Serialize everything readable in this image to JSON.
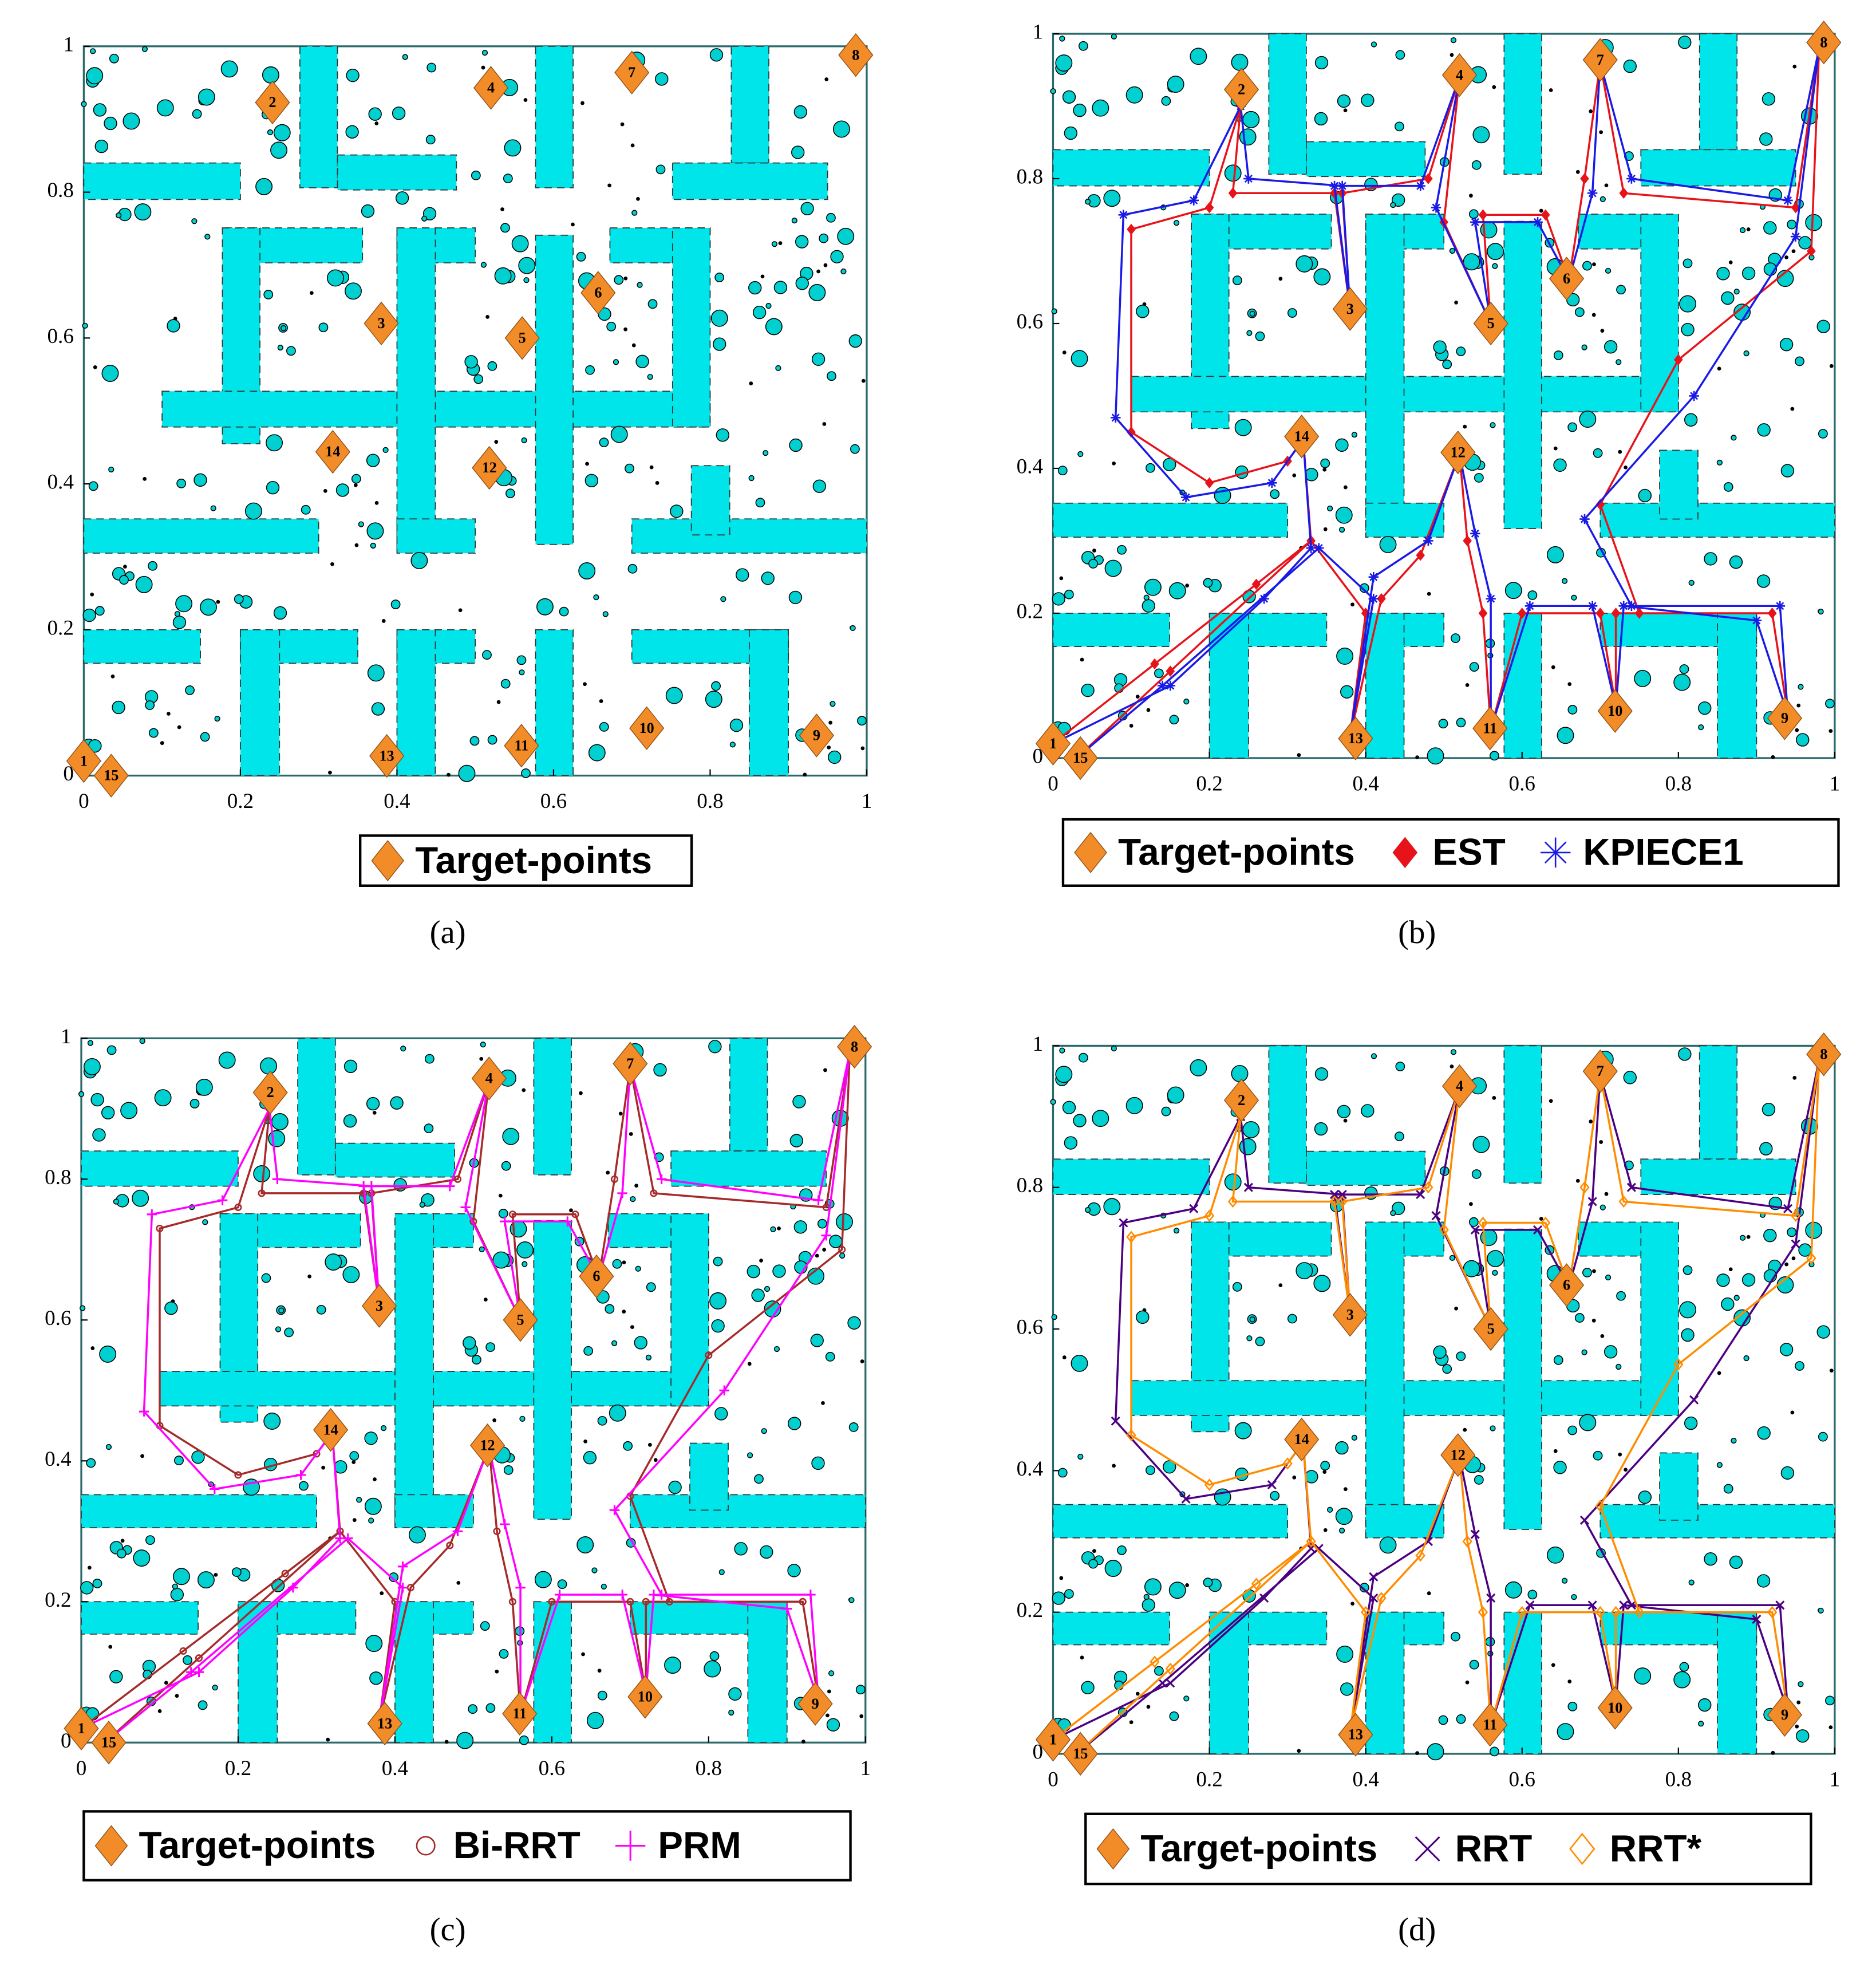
{
  "chart_data": [
    {
      "type": "scatter",
      "caption": "(a)",
      "xlim": [
        0,
        1
      ],
      "ylim": [
        0,
        1
      ],
      "xticks": [
        0,
        0.2,
        0.4,
        0.6,
        0.8,
        1
      ],
      "yticks": [
        0,
        0.2,
        0.4,
        0.6,
        0.8,
        1
      ],
      "series": [
        {
          "name": "Target-points",
          "color": "#f28c28",
          "marker": "diamond",
          "labels": [
            "1",
            "2",
            "3",
            "4",
            "5",
            "6",
            "7",
            "8",
            "9",
            "10",
            "11",
            "12",
            "13",
            "14",
            "15"
          ],
          "x": [
            0,
            0.241,
            0.38,
            0.52,
            0.56,
            0.657,
            0.7,
            0.986,
            0.936,
            0.719,
            0.559,
            0.518,
            0.387,
            0.318,
            0.035
          ],
          "y": [
            0.02,
            0.923,
            0.62,
            0.943,
            0.6,
            0.662,
            0.964,
            0.988,
            0.055,
            0.065,
            0.041,
            0.422,
            0.027,
            0.444,
            0
          ]
        }
      ]
    },
    {
      "type": "scatter",
      "caption": "(b)",
      "xlim": [
        0,
        1
      ],
      "ylim": [
        0,
        1
      ],
      "xticks": [
        0,
        0.2,
        0.4,
        0.6,
        0.8,
        1
      ],
      "yticks": [
        0,
        0.2,
        0.4,
        0.6,
        0.8,
        1
      ],
      "series": [
        {
          "name": "Target-points",
          "color": "#f28c28",
          "marker": "diamond",
          "labels": [
            "1",
            "2",
            "3",
            "4",
            "5",
            "6",
            "7",
            "8",
            "9",
            "10",
            "11",
            "12",
            "13",
            "14",
            "15"
          ],
          "x": [
            0,
            0.241,
            0.38,
            0.52,
            0.56,
            0.657,
            0.7,
            0.986,
            0.936,
            0.719,
            0.559,
            0.518,
            0.387,
            0.318,
            0.035
          ],
          "y": [
            0.02,
            0.923,
            0.62,
            0.943,
            0.6,
            0.662,
            0.964,
            0.988,
            0.055,
            0.065,
            0.041,
            0.422,
            0.027,
            0.444,
            0
          ]
        },
        {
          "name": "EST",
          "color": "#e8121a",
          "marker": "diamond",
          "x": [
            0,
            0.13,
            0.26,
            0.33,
            0.32,
            0.3,
            0.2,
            0.1,
            0.1,
            0.2,
            0.24,
            0.23,
            0.36,
            0.38,
            0.37,
            0.48,
            0.52,
            0.5,
            0.56,
            0.55,
            0.63,
            0.66,
            0.68,
            0.7,
            0.73,
            0.95,
            0.98,
            0.97,
            0.8,
            0.7,
            0.75,
            0.92,
            0.94,
            0.92,
            0.72,
            0.72,
            0.7,
            0.6,
            0.56,
            0.55,
            0.53,
            0.52,
            0.47,
            0.42,
            0.38,
            0.4,
            0.33,
            0.15,
            0.03
          ],
          "y": [
            0.02,
            0.13,
            0.24,
            0.3,
            0.44,
            0.41,
            0.38,
            0.45,
            0.73,
            0.76,
            0.9,
            0.78,
            0.78,
            0.62,
            0.78,
            0.8,
            0.94,
            0.74,
            0.6,
            0.75,
            0.75,
            0.66,
            0.8,
            0.96,
            0.78,
            0.76,
            0.98,
            0.7,
            0.55,
            0.35,
            0.2,
            0.2,
            0.06,
            0.2,
            0.2,
            0.07,
            0.2,
            0.2,
            0.04,
            0.2,
            0.3,
            0.42,
            0.28,
            0.22,
            0.03,
            0.2,
            0.3,
            0.12,
            0
          ]
        },
        {
          "name": "KPIECE1",
          "color": "#1a1ae6",
          "marker": "star",
          "x": [
            0,
            0.15,
            0.27,
            0.33,
            0.32,
            0.28,
            0.17,
            0.08,
            0.09,
            0.18,
            0.24,
            0.25,
            0.37,
            0.38,
            0.36,
            0.47,
            0.52,
            0.49,
            0.56,
            0.54,
            0.62,
            0.66,
            0.69,
            0.7,
            0.74,
            0.94,
            0.98,
            0.95,
            0.82,
            0.68,
            0.74,
            0.93,
            0.94,
            0.9,
            0.73,
            0.72,
            0.69,
            0.61,
            0.56,
            0.56,
            0.54,
            0.52,
            0.48,
            0.41,
            0.38,
            0.41,
            0.34,
            0.14,
            0.03
          ],
          "y": [
            0.02,
            0.1,
            0.22,
            0.29,
            0.44,
            0.38,
            0.36,
            0.47,
            0.75,
            0.77,
            0.9,
            0.8,
            0.79,
            0.62,
            0.79,
            0.79,
            0.94,
            0.76,
            0.6,
            0.74,
            0.74,
            0.66,
            0.78,
            0.96,
            0.8,
            0.77,
            0.98,
            0.72,
            0.5,
            0.33,
            0.21,
            0.21,
            0.06,
            0.19,
            0.21,
            0.07,
            0.21,
            0.21,
            0.04,
            0.22,
            0.31,
            0.42,
            0.3,
            0.25,
            0.03,
            0.22,
            0.29,
            0.1,
            0
          ]
        }
      ]
    },
    {
      "type": "scatter",
      "caption": "(c)",
      "xlim": [
        0,
        1
      ],
      "ylim": [
        0,
        1
      ],
      "xticks": [
        0,
        0.2,
        0.4,
        0.6,
        0.8,
        1
      ],
      "yticks": [
        0,
        0.2,
        0.4,
        0.6,
        0.8,
        1
      ],
      "series": [
        {
          "name": "Target-points",
          "color": "#f28c28",
          "marker": "diamond",
          "labels": [
            "1",
            "2",
            "3",
            "4",
            "5",
            "6",
            "7",
            "8",
            "9",
            "10",
            "11",
            "12",
            "13",
            "14",
            "15"
          ],
          "x": [
            0,
            0.241,
            0.38,
            0.52,
            0.56,
            0.657,
            0.7,
            0.986,
            0.936,
            0.719,
            0.559,
            0.518,
            0.387,
            0.318,
            0.035
          ],
          "y": [
            0.02,
            0.923,
            0.62,
            0.943,
            0.6,
            0.662,
            0.964,
            0.988,
            0.055,
            0.065,
            0.041,
            0.422,
            0.027,
            0.444,
            0
          ]
        },
        {
          "name": "Bi-RRT",
          "color": "#a52a2a",
          "marker": "circle",
          "x": [
            0,
            0.13,
            0.26,
            0.33,
            0.32,
            0.3,
            0.2,
            0.1,
            0.1,
            0.2,
            0.24,
            0.23,
            0.36,
            0.38,
            0.37,
            0.48,
            0.52,
            0.5,
            0.56,
            0.55,
            0.63,
            0.66,
            0.68,
            0.7,
            0.73,
            0.95,
            0.98,
            0.97,
            0.8,
            0.7,
            0.75,
            0.92,
            0.94,
            0.92,
            0.72,
            0.72,
            0.7,
            0.6,
            0.56,
            0.55,
            0.53,
            0.52,
            0.47,
            0.42,
            0.38,
            0.4,
            0.33,
            0.15,
            0.03
          ],
          "y": [
            0.02,
            0.13,
            0.24,
            0.3,
            0.44,
            0.41,
            0.38,
            0.45,
            0.73,
            0.76,
            0.9,
            0.78,
            0.78,
            0.62,
            0.78,
            0.8,
            0.94,
            0.74,
            0.6,
            0.75,
            0.75,
            0.66,
            0.8,
            0.96,
            0.78,
            0.76,
            0.98,
            0.7,
            0.55,
            0.35,
            0.2,
            0.2,
            0.06,
            0.2,
            0.2,
            0.07,
            0.2,
            0.2,
            0.04,
            0.2,
            0.3,
            0.42,
            0.28,
            0.22,
            0.03,
            0.2,
            0.3,
            0.12,
            0
          ]
        },
        {
          "name": "PRM",
          "color": "#ff00ff",
          "marker": "plus",
          "x": [
            0,
            0.15,
            0.27,
            0.33,
            0.32,
            0.28,
            0.17,
            0.08,
            0.09,
            0.18,
            0.24,
            0.25,
            0.37,
            0.38,
            0.36,
            0.47,
            0.52,
            0.49,
            0.56,
            0.54,
            0.62,
            0.66,
            0.69,
            0.7,
            0.74,
            0.94,
            0.98,
            0.95,
            0.82,
            0.68,
            0.74,
            0.93,
            0.94,
            0.9,
            0.73,
            0.72,
            0.69,
            0.61,
            0.56,
            0.56,
            0.54,
            0.52,
            0.48,
            0.41,
            0.38,
            0.41,
            0.34,
            0.14,
            0.03
          ],
          "y": [
            0.02,
            0.1,
            0.22,
            0.29,
            0.44,
            0.38,
            0.36,
            0.47,
            0.75,
            0.77,
            0.9,
            0.8,
            0.79,
            0.62,
            0.79,
            0.79,
            0.94,
            0.76,
            0.6,
            0.74,
            0.74,
            0.66,
            0.78,
            0.96,
            0.8,
            0.77,
            0.98,
            0.72,
            0.5,
            0.33,
            0.21,
            0.21,
            0.06,
            0.19,
            0.21,
            0.07,
            0.21,
            0.21,
            0.04,
            0.22,
            0.31,
            0.42,
            0.3,
            0.25,
            0.03,
            0.22,
            0.29,
            0.1,
            0
          ]
        }
      ]
    },
    {
      "type": "scatter",
      "caption": "(d)",
      "xlim": [
        0,
        1
      ],
      "ylim": [
        0,
        1
      ],
      "xticks": [
        0,
        0.2,
        0.4,
        0.6,
        0.8,
        1
      ],
      "yticks": [
        0,
        0.2,
        0.4,
        0.6,
        0.8,
        1
      ],
      "series": [
        {
          "name": "Target-points",
          "color": "#f28c28",
          "marker": "diamond",
          "labels": [
            "1",
            "2",
            "3",
            "4",
            "5",
            "6",
            "7",
            "8",
            "9",
            "10",
            "11",
            "12",
            "13",
            "14",
            "15"
          ],
          "x": [
            0,
            0.241,
            0.38,
            0.52,
            0.56,
            0.657,
            0.7,
            0.986,
            0.936,
            0.719,
            0.559,
            0.518,
            0.387,
            0.318,
            0.035
          ],
          "y": [
            0.02,
            0.923,
            0.62,
            0.943,
            0.6,
            0.662,
            0.964,
            0.988,
            0.055,
            0.065,
            0.041,
            0.422,
            0.027,
            0.444,
            0
          ]
        },
        {
          "name": "RRT",
          "color": "#4b0082",
          "marker": "x",
          "x": [
            0,
            0.15,
            0.27,
            0.33,
            0.32,
            0.28,
            0.17,
            0.08,
            0.09,
            0.18,
            0.24,
            0.25,
            0.37,
            0.38,
            0.36,
            0.47,
            0.52,
            0.49,
            0.56,
            0.54,
            0.62,
            0.66,
            0.69,
            0.7,
            0.74,
            0.94,
            0.98,
            0.95,
            0.82,
            0.68,
            0.74,
            0.93,
            0.94,
            0.9,
            0.73,
            0.72,
            0.69,
            0.61,
            0.56,
            0.56,
            0.54,
            0.52,
            0.48,
            0.41,
            0.38,
            0.41,
            0.34,
            0.14,
            0.03
          ],
          "y": [
            0.02,
            0.1,
            0.22,
            0.29,
            0.44,
            0.38,
            0.36,
            0.47,
            0.75,
            0.77,
            0.9,
            0.8,
            0.79,
            0.62,
            0.79,
            0.79,
            0.94,
            0.76,
            0.6,
            0.74,
            0.74,
            0.66,
            0.78,
            0.96,
            0.8,
            0.77,
            0.98,
            0.72,
            0.5,
            0.33,
            0.21,
            0.21,
            0.06,
            0.19,
            0.21,
            0.07,
            0.21,
            0.21,
            0.04,
            0.22,
            0.31,
            0.42,
            0.3,
            0.25,
            0.03,
            0.22,
            0.29,
            0.1,
            0
          ]
        },
        {
          "name": "RRT*",
          "color": "#ff8c00",
          "marker": "diamond-open",
          "x": [
            0,
            0.13,
            0.26,
            0.33,
            0.32,
            0.3,
            0.2,
            0.1,
            0.1,
            0.2,
            0.24,
            0.23,
            0.36,
            0.38,
            0.37,
            0.48,
            0.52,
            0.5,
            0.56,
            0.55,
            0.63,
            0.66,
            0.68,
            0.7,
            0.73,
            0.95,
            0.98,
            0.97,
            0.8,
            0.7,
            0.75,
            0.92,
            0.94,
            0.92,
            0.72,
            0.72,
            0.7,
            0.6,
            0.56,
            0.55,
            0.53,
            0.52,
            0.47,
            0.42,
            0.38,
            0.4,
            0.33,
            0.15,
            0.03
          ],
          "y": [
            0.02,
            0.13,
            0.24,
            0.3,
            0.44,
            0.41,
            0.38,
            0.45,
            0.73,
            0.76,
            0.9,
            0.78,
            0.78,
            0.62,
            0.78,
            0.8,
            0.94,
            0.74,
            0.6,
            0.75,
            0.75,
            0.66,
            0.8,
            0.96,
            0.78,
            0.76,
            0.98,
            0.7,
            0.55,
            0.35,
            0.2,
            0.2,
            0.06,
            0.2,
            0.2,
            0.07,
            0.2,
            0.2,
            0.04,
            0.2,
            0.3,
            0.42,
            0.28,
            0.22,
            0.03,
            0.2,
            0.3,
            0.12,
            0
          ]
        }
      ]
    }
  ]
}
